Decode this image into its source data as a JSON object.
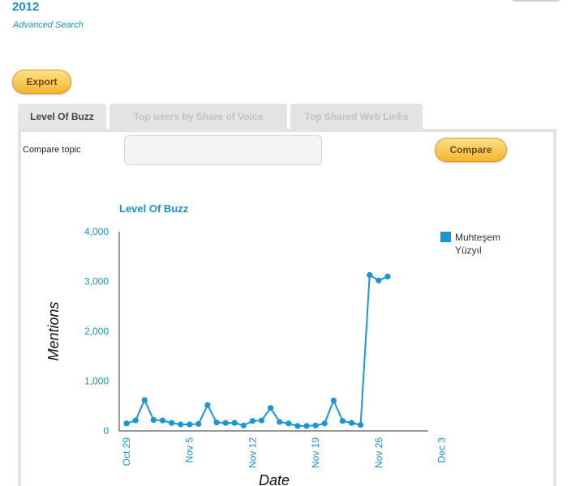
{
  "header": {
    "year": "2012",
    "advanced_search": "Advanced Search"
  },
  "toolbar": {
    "export_label": "Export"
  },
  "tabs": [
    {
      "label": "Level Of Buzz",
      "active": true
    },
    {
      "label": "Top users by Share of Voice",
      "active": false
    },
    {
      "label": "Top Shared Web Links",
      "active": false
    }
  ],
  "compare": {
    "label": "Compare topic",
    "input_value": "",
    "button_label": "Compare"
  },
  "colors": {
    "accent": "#1b8fc9",
    "series": "#1a96d8",
    "button": "#f5b52e"
  },
  "chart_data": {
    "type": "line",
    "title": "Level Of Buzz",
    "xlabel": "Date",
    "ylabel": "Mentions",
    "ylim": [
      0,
      4000
    ],
    "yticks": [
      "0",
      "1,000",
      "2,000",
      "3,000",
      "4,000"
    ],
    "xticks": [
      "Oct 29",
      "Nov 5",
      "Nov 12",
      "Nov 19",
      "Nov 26",
      "Dec 3"
    ],
    "legend": "top-right",
    "series": [
      {
        "name": "Muhteşem Yüzyıl",
        "x": [
          "Oct 29",
          "Oct 30",
          "Oct 31",
          "Nov 1",
          "Nov 2",
          "Nov 3",
          "Nov 4",
          "Nov 5",
          "Nov 6",
          "Nov 7",
          "Nov 8",
          "Nov 9",
          "Nov 10",
          "Nov 11",
          "Nov 12",
          "Nov 13",
          "Nov 14",
          "Nov 15",
          "Nov 16",
          "Nov 17",
          "Nov 18",
          "Nov 19",
          "Nov 20",
          "Nov 21",
          "Nov 22",
          "Nov 23",
          "Nov 24",
          "Nov 25",
          "Nov 26",
          "Nov 27"
        ],
        "values": [
          150,
          210,
          620,
          220,
          210,
          160,
          130,
          130,
          140,
          520,
          170,
          160,
          160,
          110,
          200,
          210,
          460,
          180,
          150,
          100,
          100,
          110,
          150,
          610,
          200,
          160,
          120,
          3130,
          3020,
          3100
        ]
      }
    ]
  }
}
